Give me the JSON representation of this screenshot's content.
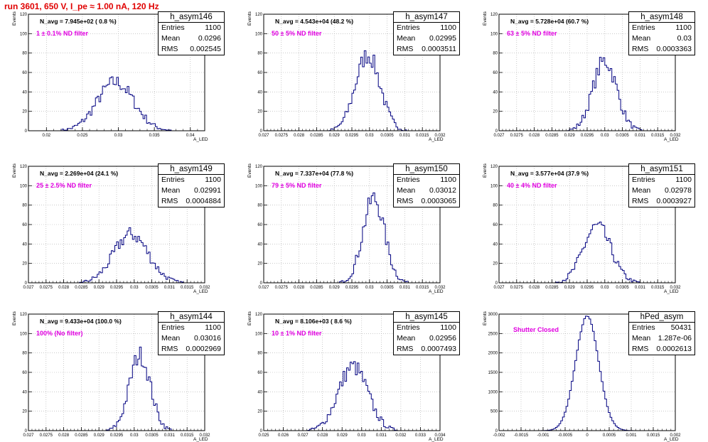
{
  "title": "run 3601,   650 V, I_pe ≈ 1.00 nA, 120 Hz",
  "chart_data": [
    {
      "type": "histogram",
      "name": "h_asym146",
      "entries": "1100",
      "mean": "0.0296",
      "rms": "0.002545",
      "n_avg": "N_avg = 7.945e+02 ( 0.8 %)",
      "filter": "1 ± 0.1% ND filter",
      "xlabel": "A_LED",
      "ylabel": "Events",
      "xlim": [
        0.0175,
        0.042
      ],
      "ylim": [
        0,
        120
      ],
      "xticks": [
        0.02,
        0.025,
        0.03,
        0.035,
        0.04
      ],
      "xtick_labels": [
        "0.02",
        "0.025",
        "0.03",
        "0.035",
        "0.04"
      ],
      "yticks": [
        0,
        20,
        40,
        60,
        80,
        100,
        120
      ],
      "mu": 0.0296,
      "sigma": 0.002545,
      "peak": 50
    },
    {
      "type": "histogram",
      "name": "h_asym147",
      "entries": "1100",
      "mean": "0.02995",
      "rms": "0.0003511",
      "n_avg": "N_avg = 4.543e+04 (48.2 %)",
      "filter": "50 ± 5% ND filter",
      "xlabel": "A_LED",
      "ylabel": "Events",
      "xlim": [
        0.027,
        0.032
      ],
      "ylim": [
        0,
        120
      ],
      "xticks": [
        0.027,
        0.0275,
        0.028,
        0.0285,
        0.029,
        0.0295,
        0.03,
        0.0305,
        0.031,
        0.0315,
        0.032
      ],
      "xtick_labels": [
        "0.027",
        "0.0275",
        "0.028",
        "0.0285",
        "0.029",
        "0.0295",
        "0.03",
        "0.0305",
        "0.031",
        "0.0315",
        "0.032"
      ],
      "yticks": [
        0,
        20,
        40,
        60,
        80,
        100,
        120
      ],
      "mu": 0.02995,
      "sigma": 0.0003511,
      "peak": 78
    },
    {
      "type": "histogram",
      "name": "h_asym148",
      "entries": "1100",
      "mean": "0.03",
      "rms": "0.0003363",
      "n_avg": "N_avg = 5.728e+04 (60.7 %)",
      "filter": "63 ± 5% ND filter",
      "xlabel": "A_LED",
      "ylabel": "Events",
      "xlim": [
        0.027,
        0.032
      ],
      "ylim": [
        0,
        120
      ],
      "xticks": [
        0.027,
        0.0275,
        0.028,
        0.0285,
        0.029,
        0.0295,
        0.03,
        0.0305,
        0.031,
        0.0315,
        0.032
      ],
      "xtick_labels": [
        "0.027",
        "0.0275",
        "0.028",
        "0.0285",
        "0.029",
        "0.0295",
        "0.03",
        "0.0305",
        "0.031",
        "0.0315",
        "0.032"
      ],
      "yticks": [
        0,
        20,
        40,
        60,
        80,
        100,
        120
      ],
      "mu": 0.03,
      "sigma": 0.0003363,
      "peak": 72
    },
    {
      "type": "histogram",
      "name": "h_asym149",
      "entries": "1100",
      "mean": "0.02991",
      "rms": "0.0004884",
      "n_avg": "N_avg = 2.269e+04 (24.1 %)",
      "filter": "25 ± 2.5% ND filter",
      "xlabel": "A_LED",
      "ylabel": "Events",
      "xlim": [
        0.027,
        0.032
      ],
      "ylim": [
        0,
        120
      ],
      "xticks": [
        0.027,
        0.0275,
        0.028,
        0.0285,
        0.029,
        0.0295,
        0.03,
        0.0305,
        0.031,
        0.0315,
        0.032
      ],
      "xtick_labels": [
        "0.027",
        "0.0275",
        "0.028",
        "0.0285",
        "0.029",
        "0.0295",
        "0.03",
        "0.0305",
        "0.031",
        "0.0315",
        "0.032"
      ],
      "yticks": [
        0,
        20,
        40,
        60,
        80,
        100,
        120
      ],
      "mu": 0.02991,
      "sigma": 0.0004884,
      "peak": 50
    },
    {
      "type": "histogram",
      "name": "h_asym150",
      "entries": "1100",
      "mean": "0.03012",
      "rms": "0.0003065",
      "n_avg": "N_avg = 7.337e+04 (77.8 %)",
      "filter": "79 ± 5% ND filter",
      "xlabel": "A_LED",
      "ylabel": "Events",
      "xlim": [
        0.027,
        0.032
      ],
      "ylim": [
        0,
        120
      ],
      "xticks": [
        0.027,
        0.0275,
        0.028,
        0.0285,
        0.029,
        0.0295,
        0.03,
        0.0305,
        0.031,
        0.0315,
        0.032
      ],
      "xtick_labels": [
        "0.027",
        "0.0275",
        "0.028",
        "0.0285",
        "0.029",
        "0.0295",
        "0.03",
        "0.0305",
        "0.031",
        "0.0315",
        "0.032"
      ],
      "yticks": [
        0,
        20,
        40,
        60,
        80,
        100,
        120
      ],
      "mu": 0.03012,
      "sigma": 0.0003065,
      "peak": 87
    },
    {
      "type": "histogram",
      "name": "h_asym151",
      "entries": "1100",
      "mean": "0.02978",
      "rms": "0.0003927",
      "n_avg": "N_avg = 3.577e+04 (37.9 %)",
      "filter": "40 ± 4% ND filter",
      "xlabel": "A_LED",
      "ylabel": "Events",
      "xlim": [
        0.027,
        0.032
      ],
      "ylim": [
        0,
        120
      ],
      "xticks": [
        0.027,
        0.0275,
        0.028,
        0.0285,
        0.029,
        0.0295,
        0.03,
        0.0305,
        0.031,
        0.0315,
        0.032
      ],
      "xtick_labels": [
        "0.027",
        "0.0275",
        "0.028",
        "0.0285",
        "0.029",
        "0.0295",
        "0.03",
        "0.0305",
        "0.031",
        "0.0315",
        "0.032"
      ],
      "yticks": [
        0,
        20,
        40,
        60,
        80,
        100,
        120
      ],
      "mu": 0.02978,
      "sigma": 0.0003927,
      "peak": 58
    },
    {
      "type": "histogram",
      "name": "h_asym144",
      "entries": "1100",
      "mean": "0.03016",
      "rms": "0.0002969",
      "n_avg": "N_avg = 9.433e+04 (100.0 %)",
      "filter": "100% (No filter)",
      "xlabel": "A_LED",
      "ylabel": "Events",
      "xlim": [
        0.027,
        0.032
      ],
      "ylim": [
        0,
        120
      ],
      "xticks": [
        0.027,
        0.0275,
        0.028,
        0.0285,
        0.029,
        0.0295,
        0.03,
        0.0305,
        0.031,
        0.0315,
        0.032
      ],
      "xtick_labels": [
        "0.027",
        "0.0275",
        "0.028",
        "0.0285",
        "0.029",
        "0.0295",
        "0.03",
        "0.0305",
        "0.031",
        "0.0315",
        "0.032"
      ],
      "yticks": [
        0,
        20,
        40,
        60,
        80,
        100,
        120
      ],
      "mu": 0.03016,
      "sigma": 0.0002969,
      "peak": 78
    },
    {
      "type": "histogram",
      "name": "h_asym145",
      "entries": "1100",
      "mean": "0.02956",
      "rms": "0.0007493",
      "n_avg": "N_avg = 8.106e+03 ( 8.6 %)",
      "filter": "10 ± 1% ND filter",
      "xlabel": "A_LED",
      "ylabel": "Events",
      "xlim": [
        0.025,
        0.034
      ],
      "ylim": [
        0,
        120
      ],
      "xticks": [
        0.025,
        0.026,
        0.027,
        0.028,
        0.029,
        0.03,
        0.031,
        0.032,
        0.033,
        0.034
      ],
      "xtick_labels": [
        "0.025",
        "0.026",
        "0.027",
        "0.028",
        "0.029",
        "0.03",
        "0.031",
        "0.032",
        "0.033",
        "0.034"
      ],
      "yticks": [
        0,
        20,
        40,
        60,
        80,
        100,
        120
      ],
      "mu": 0.02956,
      "sigma": 0.0007493,
      "peak": 66
    },
    {
      "type": "histogram",
      "name": "hPed_asym",
      "entries": "50431",
      "mean": "1.287e-06",
      "rms": "0.0002613",
      "n_avg": "",
      "filter": "Shutter Closed",
      "xlabel": "A_LED",
      "ylabel": "Events",
      "xlim": [
        -0.002,
        0.002
      ],
      "ylim": [
        0,
        3000
      ],
      "xticks": [
        -0.002,
        -0.0015,
        -0.001,
        -0.0005,
        0,
        0.0005,
        0.001,
        0.0015,
        0.002
      ],
      "xtick_labels": [
        "-0.002",
        "-0.0015",
        "-0.001",
        "-0.0005",
        "0",
        "0.0005",
        "0.001",
        "0.0015",
        "0.002"
      ],
      "yticks": [
        0,
        500,
        1000,
        1500,
        2000,
        2500,
        3000
      ],
      "mu": 0.0,
      "sigma": 0.0002613,
      "peak": 2950
    }
  ]
}
